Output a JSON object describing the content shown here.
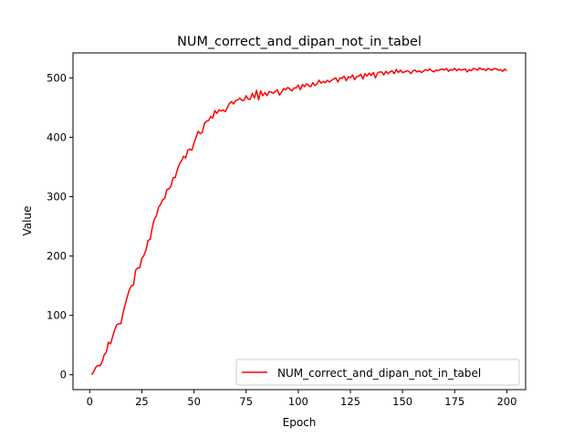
{
  "chart_data": {
    "type": "line",
    "title": "NUM_correct_and_dipan_not_in_tabel",
    "xlabel": "Epoch",
    "ylabel": "Value",
    "xlim": [
      -8,
      209
    ],
    "ylim": [
      -25,
      542
    ],
    "xticks": [
      0,
      25,
      50,
      75,
      100,
      125,
      150,
      175,
      200
    ],
    "yticks": [
      0,
      100,
      200,
      300,
      400,
      500
    ],
    "grid": false,
    "legend_position": "lower-right",
    "series": [
      {
        "name": "NUM_correct_and_dipan_not_in_tabel",
        "color": "#ff0000",
        "x": [
          1,
          2,
          3,
          4,
          5,
          6,
          7,
          8,
          9,
          10,
          11,
          12,
          13,
          14,
          15,
          16,
          17,
          18,
          19,
          20,
          21,
          22,
          23,
          24,
          25,
          26,
          27,
          28,
          29,
          30,
          31,
          32,
          33,
          34,
          35,
          36,
          37,
          38,
          39,
          40,
          41,
          42,
          43,
          44,
          45,
          46,
          47,
          48,
          49,
          50,
          51,
          52,
          53,
          54,
          55,
          56,
          57,
          58,
          59,
          60,
          61,
          62,
          63,
          64,
          65,
          66,
          67,
          68,
          69,
          70,
          71,
          72,
          73,
          74,
          75,
          76,
          77,
          78,
          79,
          80,
          81,
          82,
          83,
          84,
          85,
          86,
          87,
          88,
          89,
          90,
          91,
          92,
          93,
          94,
          95,
          96,
          97,
          98,
          99,
          100,
          101,
          102,
          103,
          104,
          105,
          106,
          107,
          108,
          109,
          110,
          111,
          112,
          113,
          114,
          115,
          116,
          117,
          118,
          119,
          120,
          121,
          122,
          123,
          124,
          125,
          126,
          127,
          128,
          129,
          130,
          131,
          132,
          133,
          134,
          135,
          136,
          137,
          138,
          139,
          140,
          141,
          142,
          143,
          144,
          145,
          146,
          147,
          148,
          149,
          150,
          151,
          152,
          153,
          154,
          155,
          156,
          157,
          158,
          159,
          160,
          161,
          162,
          163,
          164,
          165,
          166,
          167,
          168,
          169,
          170,
          171,
          172,
          173,
          174,
          175,
          176,
          177,
          178,
          179,
          180,
          181,
          182,
          183,
          184,
          185,
          186,
          187,
          188,
          189,
          190,
          191,
          192,
          193,
          194,
          195,
          196,
          197,
          198,
          199,
          200
        ],
        "y": [
          0,
          6,
          13,
          16,
          15,
          22,
          34,
          38,
          55,
          52,
          64,
          76,
          84,
          86,
          86,
          104,
          118,
          131,
          143,
          150,
          151,
          176,
          180,
          180,
          196,
          201,
          210,
          226,
          228,
          248,
          262,
          268,
          282,
          287,
          295,
          297,
          312,
          313,
          318,
          332,
          332,
          345,
          355,
          360,
          368,
          365,
          378,
          380,
          378,
          390,
          400,
          410,
          406,
          408,
          423,
          427,
          428,
          435,
          432,
          445,
          440,
          446,
          444,
          446,
          443,
          450,
          457,
          460,
          456,
          462,
          463,
          466,
          462,
          462,
          470,
          464,
          464,
          474,
          466,
          479,
          463,
          478,
          470,
          475,
          470,
          477,
          476,
          474,
          477,
          480,
          471,
          476,
          482,
          480,
          484,
          481,
          478,
          483,
          483,
          488,
          480,
          489,
          485,
          490,
          487,
          485,
          492,
          487,
          490,
          496,
          491,
          494,
          492,
          496,
          493,
          496,
          498,
          500,
          493,
          500,
          499,
          503,
          495,
          502,
          500,
          505,
          497,
          502,
          503,
          506,
          498,
          507,
          503,
          508,
          504,
          509,
          500,
          508,
          510,
          510,
          505,
          511,
          507,
          510,
          512,
          507,
          514,
          509,
          513,
          509,
          510,
          512,
          511,
          507,
          512,
          513,
          510,
          512,
          509,
          511,
          514,
          512,
          515,
          512,
          510,
          513,
          512,
          514,
          515,
          513,
          516,
          511,
          514,
          513,
          516,
          512,
          515,
          513,
          514,
          515,
          510,
          514,
          512,
          516,
          515,
          513,
          517,
          514,
          515,
          512,
          516,
          514,
          513,
          516,
          515,
          513,
          514,
          511,
          515,
          512
        ]
      }
    ]
  }
}
